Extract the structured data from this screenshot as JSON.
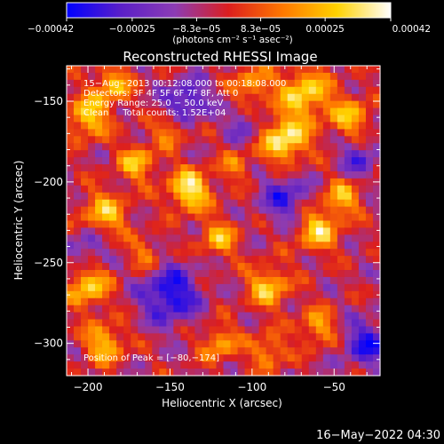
{
  "chart_data": {
    "type": "heatmap",
    "title": "Reconstructed RHESSI Image",
    "xlabel": "Heliocentric X (arcsec)",
    "ylabel": "Heliocentric Y (arcsec)",
    "xlim": [
      -213,
      -22
    ],
    "ylim": [
      -320,
      -128
    ],
    "x_ticks": [
      -200,
      -150,
      -100,
      -50
    ],
    "x_tick_labels": [
      "−200",
      "−150",
      "−100",
      "−50"
    ],
    "y_ticks": [
      -150,
      -200,
      -250,
      -300
    ],
    "y_tick_labels": [
      "−150",
      "−200",
      "−250",
      "−300"
    ],
    "colorbar": {
      "range": [
        -0.00042,
        0.00042
      ],
      "ticks": [
        -0.00042,
        -0.00025,
        -8.3e-05,
        8.3e-05,
        0.00025,
        0.00042
      ],
      "tick_labels": [
        "−0.00042",
        "−0.00025",
        "−8.3e−05",
        "8.3e−05",
        "0.00025",
        "0.00042"
      ],
      "unit": "(photons cm⁻² s⁻¹ asec⁻²)",
      "colors": [
        "#0000ff",
        "#5a1fc8",
        "#8c3cb4",
        "#dc1e1e",
        "#ff7800",
        "#ffd200",
        "#ffffff"
      ]
    },
    "annotations": [
      "15−Aug−2013 00:12:08.000 to 00:18:08.000",
      "Detectors: 3F 4F 5F 6F 7F 8F, Att 0",
      "Energy Range: 25.0 − 50.0 keV",
      "Clean     Total counts: 1.52E+04"
    ],
    "peak_label": "Position of Peak = [−80,−174]",
    "peak": [
      -80,
      -174
    ],
    "hotspots": [
      {
        "x": -138,
        "y": -205,
        "amp": 0.00042,
        "sigma": 9
      },
      {
        "x": -80,
        "y": -174,
        "amp": 0.00042,
        "sigma": 10
      },
      {
        "x": -68,
        "y": -145,
        "amp": 0.00036,
        "sigma": 11
      },
      {
        "x": -170,
        "y": -188,
        "amp": 0.0003,
        "sigma": 8
      },
      {
        "x": -190,
        "y": -220,
        "amp": 0.0003,
        "sigma": 10
      },
      {
        "x": -200,
        "y": -160,
        "amp": 0.00034,
        "sigma": 9
      },
      {
        "x": -185,
        "y": -140,
        "amp": 0.0003,
        "sigma": 8
      },
      {
        "x": -150,
        "y": -168,
        "amp": 0.00022,
        "sigma": 7
      },
      {
        "x": -100,
        "y": -140,
        "amp": 0.00026,
        "sigma": 8
      },
      {
        "x": -40,
        "y": -160,
        "amp": 0.00028,
        "sigma": 9
      },
      {
        "x": -120,
        "y": -235,
        "amp": 0.00028,
        "sigma": 8
      },
      {
        "x": -90,
        "y": -265,
        "amp": 0.00032,
        "sigma": 9
      },
      {
        "x": -60,
        "y": -230,
        "amp": 0.00034,
        "sigma": 9
      },
      {
        "x": -45,
        "y": -210,
        "amp": 0.00028,
        "sigma": 8
      },
      {
        "x": -200,
        "y": -265,
        "amp": 0.00034,
        "sigma": 9
      },
      {
        "x": -190,
        "y": -300,
        "amp": 0.0003,
        "sigma": 9
      },
      {
        "x": -120,
        "y": -300,
        "amp": 0.00026,
        "sigma": 8
      },
      {
        "x": -90,
        "y": -305,
        "amp": 0.00024,
        "sigma": 8
      },
      {
        "x": -60,
        "y": -290,
        "amp": 0.00026,
        "sigma": 8
      },
      {
        "x": -165,
        "y": -245,
        "amp": 0.0002,
        "sigma": 7
      },
      {
        "x": -110,
        "y": -190,
        "amp": 0.00018,
        "sigma": 7
      },
      {
        "x": -140,
        "y": -150,
        "amp": -0.0003,
        "sigma": 9
      },
      {
        "x": -150,
        "y": -270,
        "amp": -0.00036,
        "sigma": 12
      },
      {
        "x": -80,
        "y": -210,
        "amp": -0.00026,
        "sigma": 10
      },
      {
        "x": -30,
        "y": -300,
        "amp": -0.0003,
        "sigma": 10
      },
      {
        "x": -35,
        "y": -185,
        "amp": -0.00022,
        "sigma": 8
      },
      {
        "x": -200,
        "y": -240,
        "amp": -0.0002,
        "sigma": 8
      },
      {
        "x": -105,
        "y": -165,
        "amp": -0.00018,
        "sigma": 7
      }
    ]
  },
  "footer": {
    "timestamp": "16−May−2022 04:30"
  }
}
